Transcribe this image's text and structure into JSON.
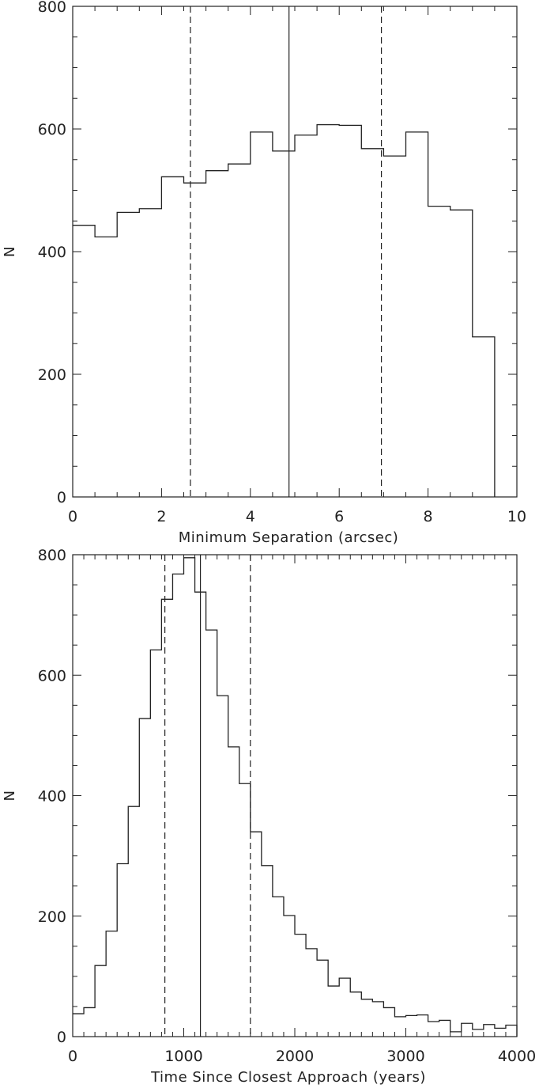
{
  "chart_data": [
    {
      "type": "histogram",
      "xlabel": "Minimum Separation (arcsec)",
      "ylabel": "N",
      "xlim": [
        0,
        10
      ],
      "ylim": [
        0,
        800
      ],
      "xticks": [
        0,
        2,
        4,
        6,
        8,
        10
      ],
      "yticks": [
        0,
        200,
        400,
        600,
        800
      ],
      "x_minor_step": 0.5,
      "y_minor_step": 50,
      "bin_edges": [
        0,
        0.5,
        1,
        1.5,
        2,
        2.5,
        3,
        3.5,
        4,
        4.5,
        5,
        5.5,
        6,
        6.5,
        7,
        7.5,
        8,
        8.5,
        9,
        9.5
      ],
      "values": [
        443,
        424,
        464,
        470,
        522,
        512,
        532,
        543,
        595,
        564,
        590,
        607,
        606,
        568,
        556,
        595,
        474,
        468,
        261
      ],
      "vertical_lines": [
        {
          "x": 2.65,
          "style": "dashed"
        },
        {
          "x": 4.87,
          "style": "solid"
        },
        {
          "x": 6.95,
          "style": "dashed"
        }
      ]
    },
    {
      "type": "histogram",
      "xlabel": "Time Since Closest Approach (years)",
      "ylabel": "N",
      "xlim": [
        0,
        4000
      ],
      "ylim": [
        0,
        800
      ],
      "xticks": [
        0,
        1000,
        2000,
        3000,
        4000
      ],
      "yticks": [
        0,
        200,
        400,
        600,
        800
      ],
      "x_minor_step": 100,
      "y_minor_step": 50,
      "bin_edges": [
        0,
        100,
        200,
        300,
        400,
        500,
        600,
        700,
        800,
        900,
        1000,
        1100,
        1200,
        1300,
        1400,
        1500,
        1600,
        1700,
        1800,
        1900,
        2000,
        2100,
        2200,
        2300,
        2400,
        2500,
        2600,
        2700,
        2800,
        2900,
        3000,
        3100,
        3200,
        3300,
        3400,
        3500,
        3600,
        3700,
        3800,
        3900,
        4000
      ],
      "values": [
        38,
        48,
        118,
        175,
        287,
        382,
        528,
        642,
        726,
        768,
        795,
        738,
        675,
        566,
        481,
        420,
        340,
        284,
        232,
        201,
        170,
        146,
        127,
        84,
        97,
        74,
        62,
        58,
        48,
        33,
        35,
        36,
        25,
        27,
        8,
        22,
        12,
        20,
        14,
        19
      ],
      "vertical_lines": [
        {
          "x": 830,
          "style": "dashed"
        },
        {
          "x": 1150,
          "style": "solid"
        },
        {
          "x": 1600,
          "style": "dashed"
        }
      ]
    }
  ]
}
